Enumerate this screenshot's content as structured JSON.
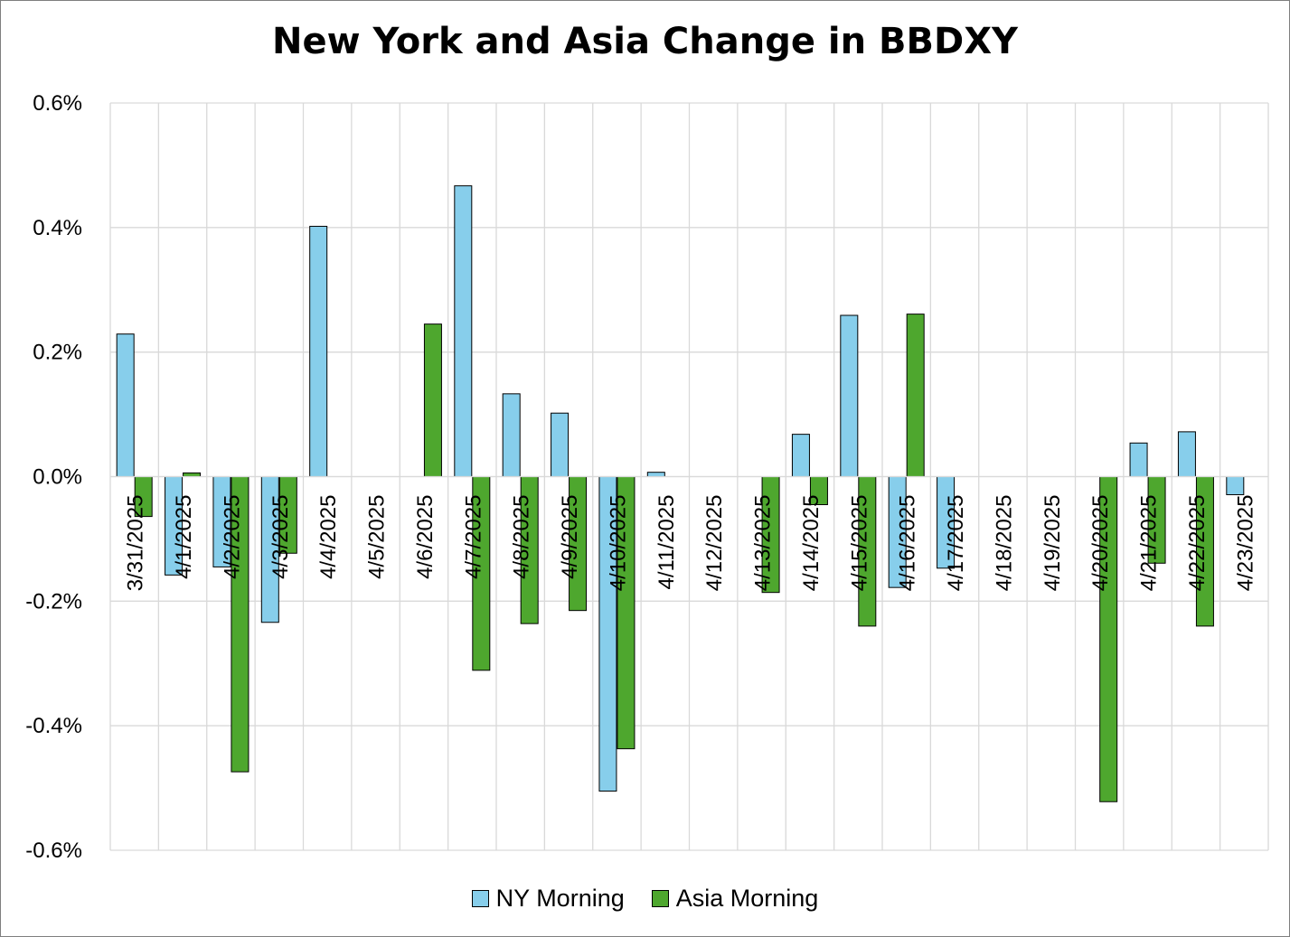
{
  "chart_data": {
    "type": "bar",
    "title": "New York and Asia Change in BBDXY",
    "xlabel": "",
    "ylabel": "",
    "ylim": [
      -0.6,
      0.6
    ],
    "yticks": [
      "0.6%",
      "0.4%",
      "0.2%",
      "0.0%",
      "-0.2%",
      "-0.4%",
      "-0.6%"
    ],
    "ytick_values": [
      0.6,
      0.4,
      0.2,
      0.0,
      -0.2,
      -0.4,
      -0.6
    ],
    "grid": true,
    "legend_position": "bottom",
    "categories": [
      "3/31/2025",
      "4/1/2025",
      "4/2/2025",
      "4/3/2025",
      "4/4/2025",
      "4/5/2025",
      "4/6/2025",
      "4/7/2025",
      "4/8/2025",
      "4/9/2025",
      "4/10/2025",
      "4/11/2025",
      "4/12/2025",
      "4/13/2025",
      "4/14/2025",
      "4/15/2025",
      "4/16/2025",
      "4/17/2025",
      "4/18/2025",
      "4/19/2025",
      "4/20/2025",
      "4/21/2025",
      "4/22/2025",
      "4/23/2025"
    ],
    "series": [
      {
        "name": "NY Morning",
        "color": "#87CEEB",
        "values": [
          0.229,
          -0.158,
          -0.145,
          -0.234,
          0.402,
          null,
          null,
          0.467,
          0.133,
          0.102,
          -0.505,
          0.007,
          null,
          null,
          0.068,
          0.259,
          -0.178,
          -0.147,
          null,
          null,
          null,
          0.054,
          0.072,
          -0.029
        ]
      },
      {
        "name": "Asia Morning",
        "color": "#4EA72E",
        "values": [
          -0.064,
          0.006,
          -0.474,
          -0.123,
          null,
          null,
          0.245,
          -0.311,
          -0.236,
          -0.215,
          -0.437,
          null,
          null,
          -0.186,
          -0.045,
          -0.24,
          0.261,
          null,
          null,
          null,
          -0.522,
          -0.139,
          -0.24,
          null
        ]
      }
    ]
  }
}
